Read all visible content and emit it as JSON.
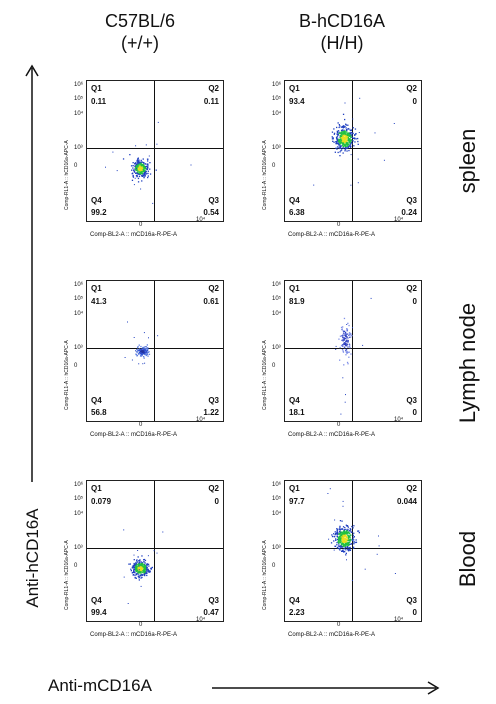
{
  "columns": [
    {
      "line1": "C57BL/6",
      "line2": "(+/+)"
    },
    {
      "line1": "B-hCD16A",
      "line2": "(H/H)"
    }
  ],
  "rows": [
    "spleen",
    "Lymph node",
    "Blood"
  ],
  "axes": {
    "y_title": "Anti-hCD16A",
    "x_title": "Anti-mCD16A",
    "panel_ylabel": "Comp-RL1-A :: hCD16a-APC-A",
    "panel_xlabel": "Comp-BL2-A :: mCD16a-R-PE-A",
    "yticks": [
      "10⁶",
      "10⁵",
      "10⁴",
      "10³",
      "0"
    ],
    "xticks": [
      "0",
      "10⁴"
    ]
  },
  "chart_data": [
    {
      "type": "scatter",
      "row": "spleen",
      "column": "C57BL/6 (+/+)",
      "quadrants": {
        "Q1": "0.11",
        "Q2": "0.11",
        "Q3": "0.54",
        "Q4": "99.2"
      },
      "population": "Q4",
      "colors": {
        "core": "#e8e020",
        "mid": "#20c040",
        "outer": "#2040c0"
      }
    },
    {
      "type": "scatter",
      "row": "spleen",
      "column": "B-hCD16A (H/H)",
      "quadrants": {
        "Q1": "93.4",
        "Q2": "0",
        "Q3": "0.24",
        "Q4": "6.38"
      },
      "population": "Q1",
      "colors": {
        "core": "#e8e020",
        "mid": "#20c040",
        "outer": "#2040c0"
      }
    },
    {
      "type": "scatter",
      "row": "Lymph node",
      "column": "C57BL/6 (+/+)",
      "quadrants": {
        "Q1": "41.3",
        "Q2": "0.61",
        "Q3": "1.22",
        "Q4": "56.8"
      },
      "population": "border",
      "colors": {
        "core": "#2030a0",
        "mid": "#3050d0",
        "outer": "#6080e0"
      }
    },
    {
      "type": "scatter",
      "row": "Lymph node",
      "column": "B-hCD16A (H/H)",
      "quadrants": {
        "Q1": "81.9",
        "Q2": "0",
        "Q3": "0",
        "Q4": "18.1"
      },
      "population": "Q1-sparse",
      "colors": {
        "core": "#3040c0",
        "mid": "#5060d0",
        "outer": "#8090e8"
      }
    },
    {
      "type": "scatter",
      "row": "Blood",
      "column": "C57BL/6 (+/+)",
      "quadrants": {
        "Q1": "0.079",
        "Q2": "0",
        "Q3": "0.47",
        "Q4": "99.4"
      },
      "population": "Q4",
      "colors": {
        "core": "#e8e020",
        "mid": "#20c040",
        "outer": "#2040c0"
      }
    },
    {
      "type": "scatter",
      "row": "Blood",
      "column": "B-hCD16A (H/H)",
      "quadrants": {
        "Q1": "97.7",
        "Q2": "0.044",
        "Q3": "0",
        "Q4": "2.23"
      },
      "population": "Q1",
      "colors": {
        "core": "#e8e020",
        "mid": "#20c040",
        "outer": "#2040c0"
      }
    }
  ]
}
